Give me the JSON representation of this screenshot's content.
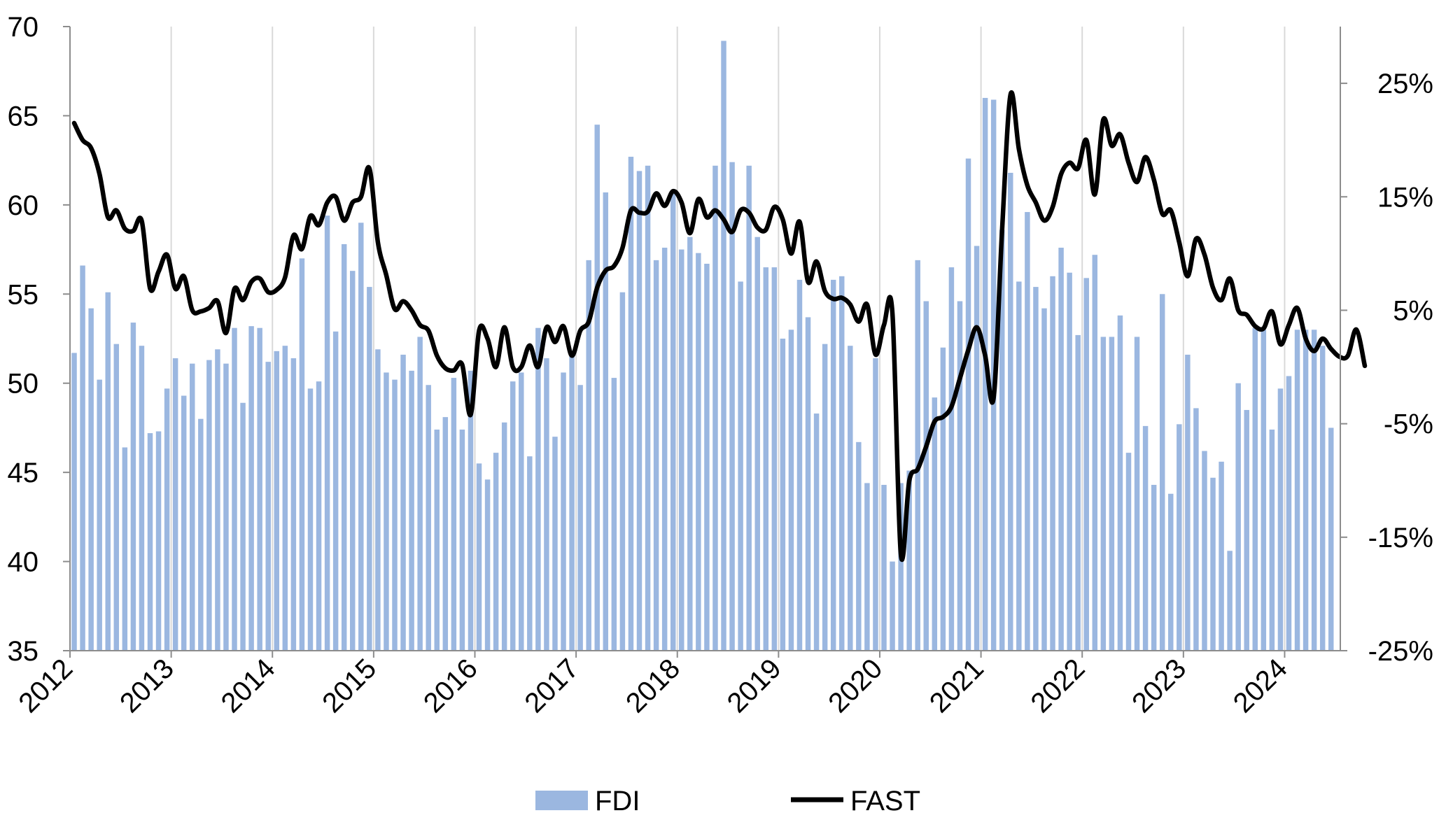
{
  "chart_data": {
    "type": "bar",
    "title": "",
    "xlabel": "",
    "ylabel": "",
    "y_left_lim": [
      35,
      70
    ],
    "y_left_ticks": [
      "35",
      "40",
      "45",
      "50",
      "55",
      "60",
      "65",
      "70"
    ],
    "y_right_lim": [
      -25,
      30
    ],
    "y_right_ticks": [
      "-25%",
      "-15%",
      "-5%",
      "5%",
      "15%",
      "25%"
    ],
    "x_ticks": [
      "2012",
      "2013",
      "2014",
      "2015",
      "2016",
      "2017",
      "2018",
      "2019",
      "2020",
      "2021",
      "2022",
      "2023",
      "2024"
    ],
    "x_start": "2012-01",
    "grid": "vertical lines at each year",
    "legend": "bottom-center",
    "colors": {
      "FDI": "#9bb7e0",
      "FAST": "#000000"
    },
    "series": [
      {
        "name": "FDI",
        "type": "bar",
        "axis": "left",
        "values": [
          51.7,
          56.6,
          54.2,
          50.2,
          55.1,
          52.2,
          46.4,
          53.4,
          52.1,
          47.2,
          47.3,
          49.7,
          51.4,
          49.3,
          51.1,
          48.0,
          51.3,
          51.9,
          51.1,
          53.1,
          48.9,
          53.2,
          53.1,
          51.2,
          51.8,
          52.1,
          51.4,
          57.0,
          49.7,
          50.1,
          59.4,
          52.9,
          57.8,
          56.3,
          59.0,
          55.4,
          51.9,
          50.6,
          50.2,
          51.6,
          50.7,
          52.6,
          49.9,
          47.4,
          48.1,
          50.3,
          47.4,
          50.7,
          45.5,
          44.6,
          46.1,
          47.8,
          50.1,
          50.6,
          45.9,
          53.1,
          51.4,
          47.0,
          50.6,
          51.6,
          49.9,
          56.9,
          64.5,
          60.7,
          50.3,
          55.1,
          62.7,
          61.9,
          62.2,
          56.9,
          57.6,
          60.8,
          57.5,
          58.2,
          57.3,
          56.7,
          62.2,
          69.2,
          62.4,
          55.7,
          62.2,
          58.2,
          56.5,
          56.5,
          52.5,
          53.0,
          55.8,
          53.7,
          48.3,
          52.2,
          55.8,
          56.0,
          52.1,
          46.7,
          44.4,
          51.4,
          44.3,
          40.0,
          44.4,
          45.1,
          56.9,
          54.6,
          49.2,
          52.0,
          56.5,
          54.6,
          62.6,
          57.7,
          66.0,
          65.9,
          58.6,
          61.8,
          55.7,
          59.6,
          55.4,
          54.2,
          56.0,
          57.6,
          56.2,
          52.7,
          55.9,
          57.2,
          52.6,
          52.6,
          53.8,
          46.1,
          52.6,
          47.6,
          44.3,
          55.0,
          43.8,
          47.7,
          51.6,
          48.6,
          46.2,
          44.7,
          45.6,
          40.6,
          50.0,
          48.5,
          53.1,
          53.0,
          47.4,
          49.7,
          50.4,
          53.0,
          53.0,
          53.0,
          52.1,
          47.5
        ]
      },
      {
        "name": "FAST",
        "type": "line",
        "axis": "right",
        "unit": "%",
        "values": [
          21.5,
          20.0,
          19.3,
          17.0,
          13.2,
          13.8,
          12.2,
          12.0,
          12.9,
          6.9,
          8.4,
          9.9,
          6.9,
          8.0,
          5.0,
          4.9,
          5.2,
          5.8,
          3.0,
          6.9,
          5.9,
          7.5,
          7.8,
          6.6,
          6.8,
          7.9,
          11.6,
          10.4,
          13.3,
          12.5,
          14.5,
          15.0,
          12.9,
          14.5,
          15.0,
          17.5,
          11.0,
          8.1,
          5.1,
          5.8,
          5.0,
          3.7,
          3.2,
          1.0,
          -0.1,
          -0.3,
          0.2,
          -4.2,
          3.2,
          2.5,
          0.0,
          3.5,
          0.0,
          0.0,
          1.9,
          0.0,
          3.5,
          2.2,
          3.6,
          1.0,
          3.2,
          4.0,
          7.0,
          8.5,
          8.9,
          10.5,
          13.8,
          13.6,
          13.7,
          15.3,
          14.2,
          15.5,
          14.5,
          11.8,
          14.8,
          13.2,
          13.8,
          13.0,
          11.9,
          13.8,
          13.6,
          12.3,
          12.1,
          14.1,
          13.0,
          10.0,
          12.8,
          7.5,
          9.3,
          6.7,
          6.0,
          6.1,
          5.5,
          4.0,
          5.5,
          1.1,
          3.7,
          4.8,
          -16.5,
          -10.0,
          -9.0,
          -7.0,
          -4.8,
          -4.4,
          -3.5,
          -1.0,
          1.5,
          3.5,
          1.0,
          -2.7,
          12.0,
          24.0,
          19.2,
          16.0,
          14.5,
          12.9,
          14.1,
          17.0,
          18.0,
          17.5,
          20.0,
          15.2,
          21.8,
          19.5,
          20.5,
          18.0,
          16.3,
          18.5,
          16.5,
          13.5,
          13.8,
          11.0,
          8.0,
          11.3,
          9.9,
          7.0,
          5.9,
          7.8,
          5.0,
          4.6,
          3.6,
          3.4,
          4.9,
          2.0,
          3.7,
          5.2,
          2.5,
          1.4,
          2.5,
          1.6,
          0.9,
          1.0,
          3.3,
          0.1
        ]
      }
    ]
  }
}
